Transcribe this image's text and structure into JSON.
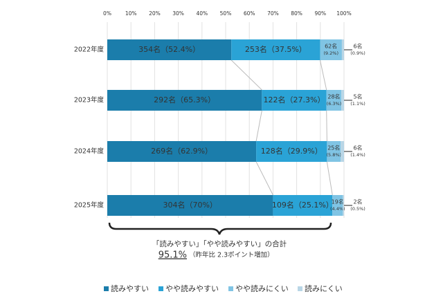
{
  "chart_data": {
    "type": "stacked-bar-horizontal",
    "categories": [
      "2022年度",
      "2023年度",
      "2024年度",
      "2025年度"
    ],
    "xlim": [
      0,
      100
    ],
    "xticks": [
      {
        "value": 0,
        "label": "0%"
      },
      {
        "value": 10,
        "label": "10%"
      },
      {
        "value": 20,
        "label": "20%"
      },
      {
        "value": 30,
        "label": "30%"
      },
      {
        "value": 40,
        "label": "40%"
      },
      {
        "value": 50,
        "label": "50%"
      },
      {
        "value": 60,
        "label": "60%"
      },
      {
        "value": 70,
        "label": "70%"
      },
      {
        "value": 80,
        "label": "80%"
      },
      {
        "value": 90,
        "label": "90%"
      },
      {
        "value": 100,
        "label": "100%"
      }
    ],
    "grid": true,
    "series": [
      {
        "name": "読みやすい",
        "color": "#1b7dab",
        "values": [
          52.4,
          65.3,
          62.9,
          70
        ],
        "value_labels": [
          "354名（52.4%）",
          "292名（65.3%）",
          "269名（62.9%）",
          "304名（70%）"
        ]
      },
      {
        "name": "やや読みやすい",
        "color": "#2aa3d6",
        "values": [
          37.5,
          27.3,
          29.9,
          25.1
        ],
        "value_labels": [
          "253名（37.5%）",
          "122名（27.3%）",
          "128名（29.9%）",
          "109名（25.1%）"
        ]
      },
      {
        "name": "やや読みにくい",
        "color": "#80c4e4",
        "values": [
          9.2,
          6.3,
          5.8,
          4.4
        ],
        "value_labels": [
          [
            "62名",
            "(9.2%)"
          ],
          [
            "28名",
            "(6.3%)"
          ],
          [
            "25名",
            "(5.8%)"
          ],
          [
            "19名",
            "(4.4%)"
          ]
        ]
      },
      {
        "name": "読みにくい",
        "color": "#b9d6e6",
        "values": [
          0.9,
          1.1,
          1.4,
          0.5
        ],
        "value_labels": [
          [
            "6名",
            "(0.9%)"
          ],
          [
            "5名",
            "(1.1%)"
          ],
          [
            "6名",
            "(1.4%)"
          ],
          [
            "2名",
            "(0.5%)"
          ]
        ]
      }
    ],
    "annotation": {
      "title": "「読みやすい」「やや読みやすい」の合計",
      "total": "95.1%",
      "note": "（昨年比 2.3ポイント増加）"
    }
  }
}
